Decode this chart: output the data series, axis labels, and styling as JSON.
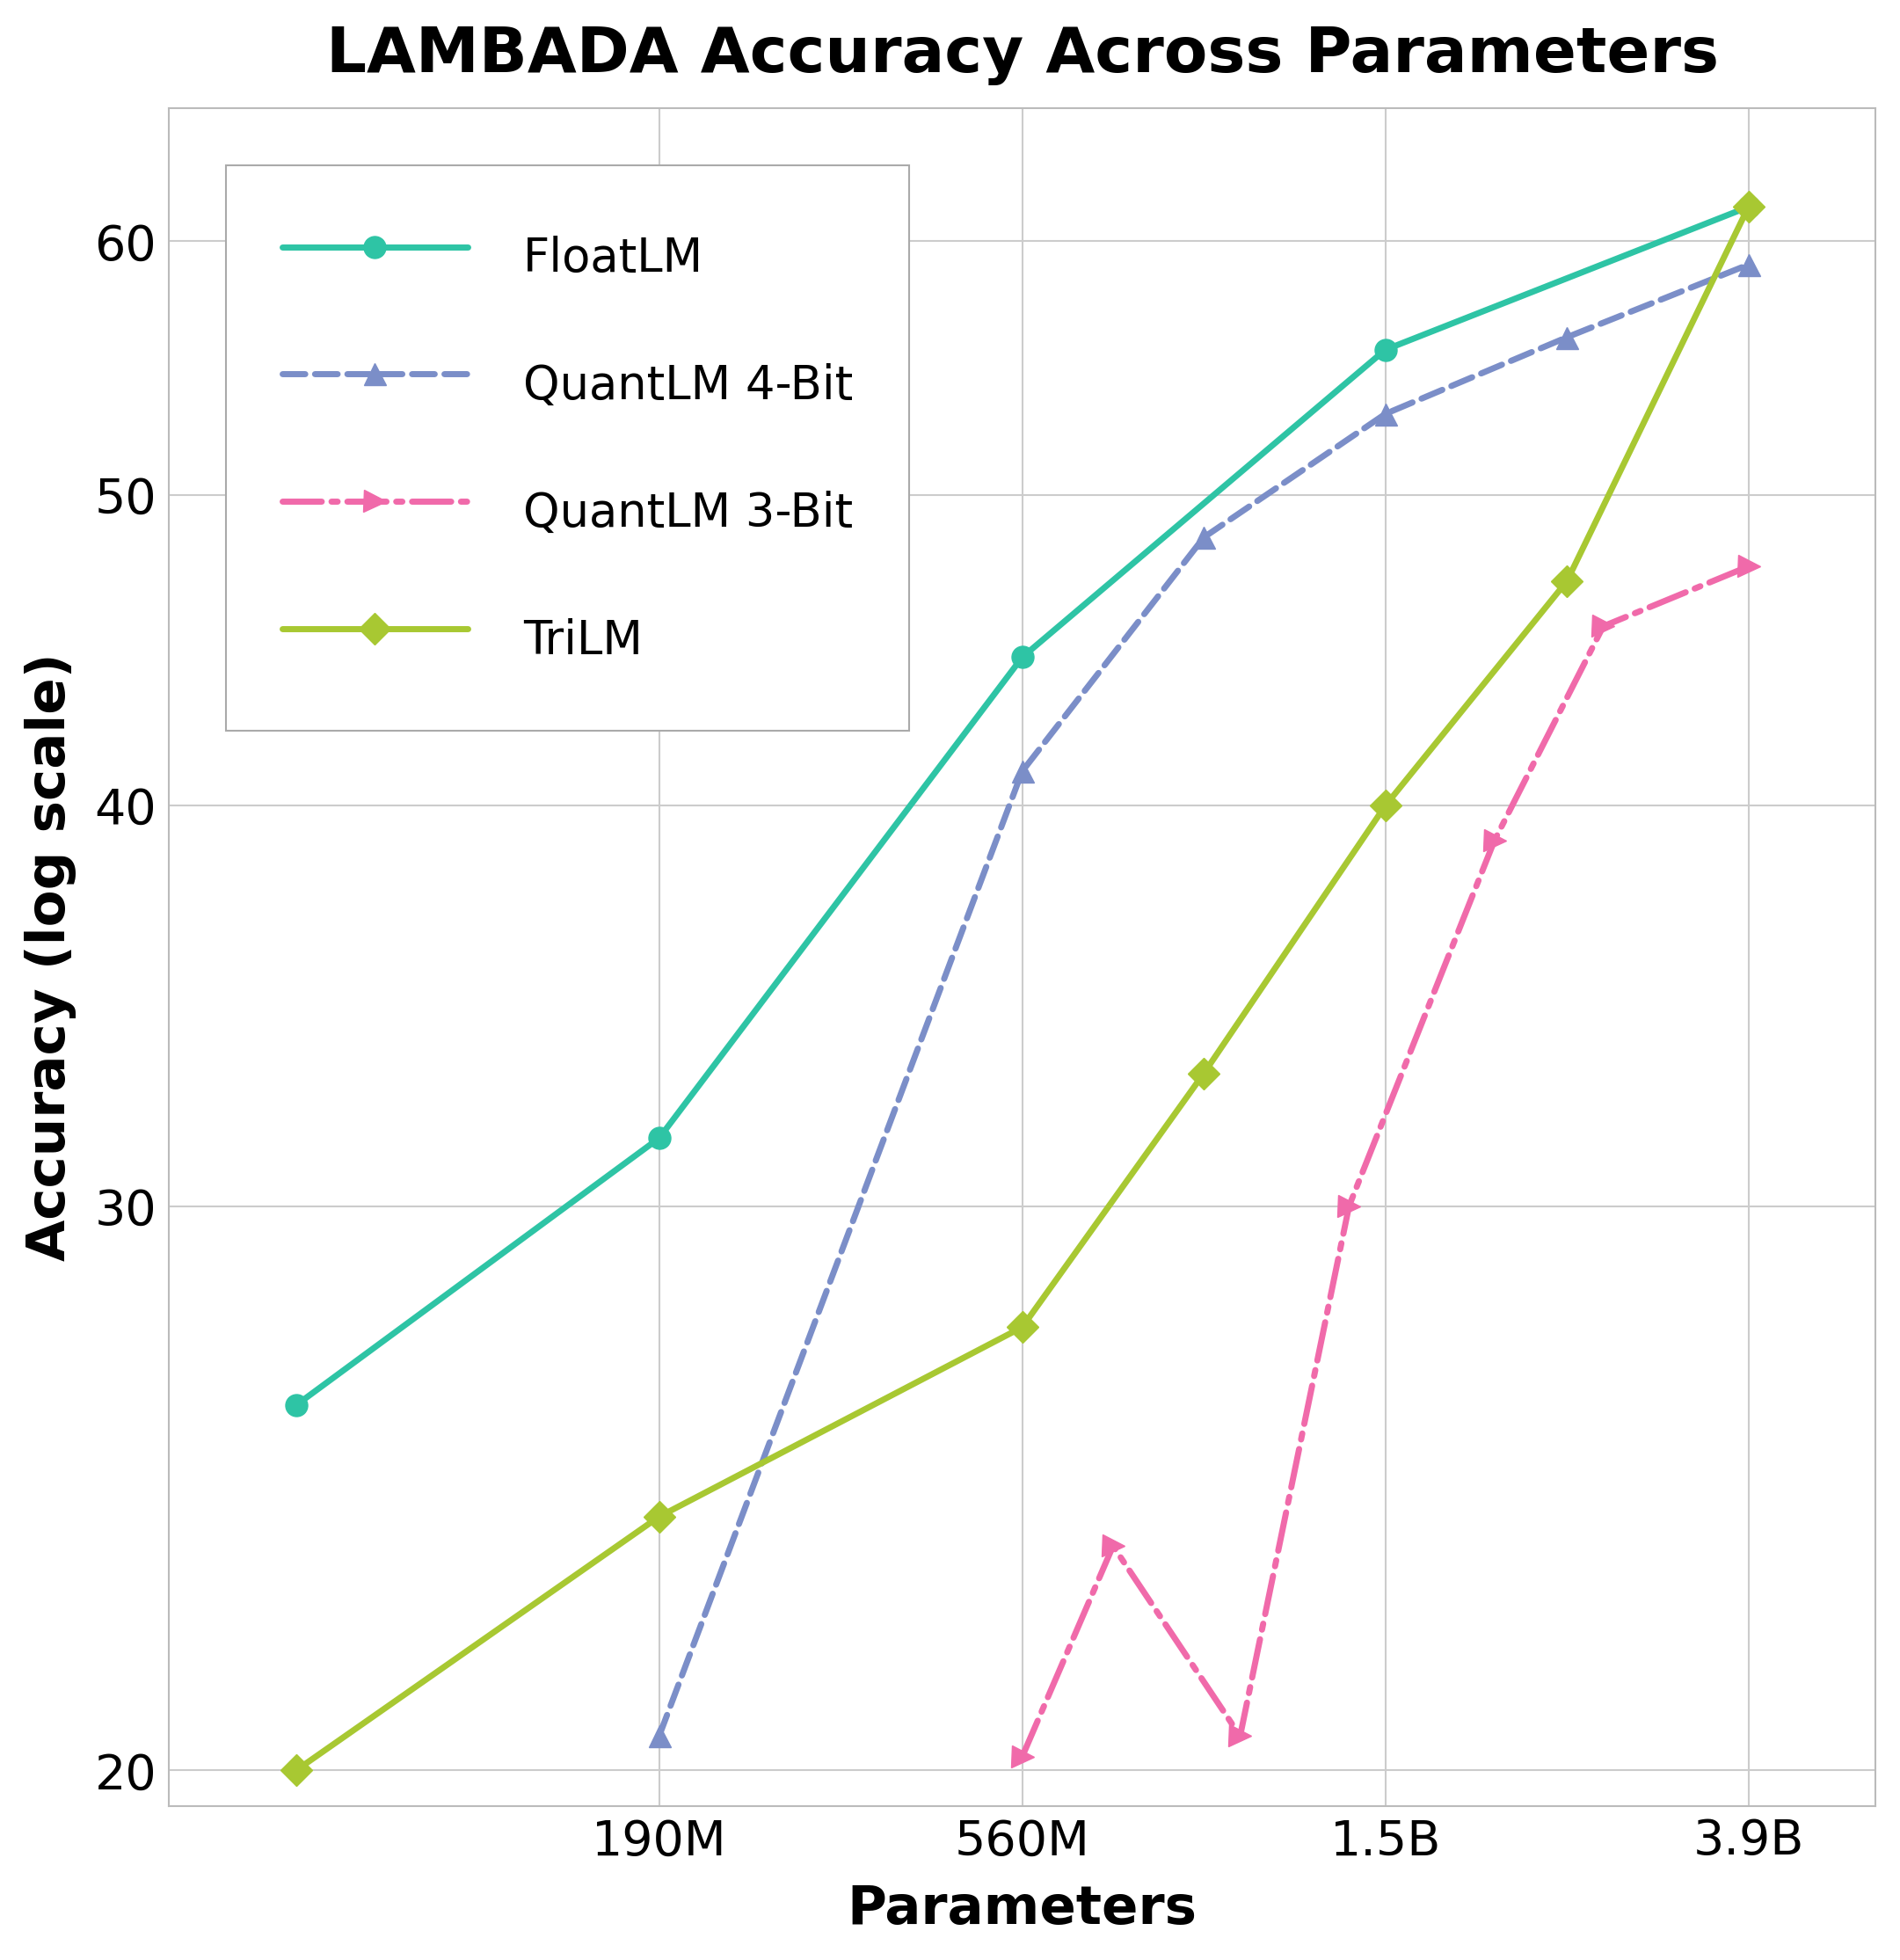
{
  "title": "LAMBADA Accuracy Across Parameters",
  "xlabel": "Parameters",
  "ylabel": "Accuracy (log scale)",
  "series": [
    {
      "label": "FloatLM",
      "color": "#2ec4a5",
      "linestyle": "solid",
      "marker": "o",
      "marker_size": 18,
      "linewidth": 5,
      "x": [
        0,
        1,
        2,
        3,
        4
      ],
      "y": [
        26.0,
        31.5,
        44.5,
        55.5,
        61.5
      ]
    },
    {
      "label": "QuantLM 4-Bit",
      "color": "#7b8ec8",
      "linestyle": "dashed",
      "marker": "^",
      "marker_size": 18,
      "linewidth": 5,
      "x": [
        1,
        2,
        2.5,
        3,
        3.5,
        4
      ],
      "y": [
        20.5,
        41.0,
        48.5,
        53.0,
        56.0,
        59.0
      ]
    },
    {
      "label": "QuantLM 3-Bit",
      "color": "#f06aaa",
      "linestyle": "dashdot",
      "marker": ">",
      "marker_size": 18,
      "linewidth": 5,
      "x": [
        2,
        2.25,
        2.6,
        2.9,
        3.3,
        3.6,
        4
      ],
      "y": [
        20.2,
        23.5,
        20.5,
        30.0,
        39.0,
        45.5,
        47.5
      ]
    },
    {
      "label": "TriLM",
      "color": "#a8c832",
      "linestyle": "solid",
      "marker": "D",
      "marker_size": 18,
      "linewidth": 5,
      "x": [
        0,
        1,
        2,
        2.5,
        3,
        3.5,
        4
      ],
      "y": [
        20.0,
        24.0,
        27.5,
        33.0,
        40.0,
        47.0,
        61.5
      ]
    }
  ],
  "ylim": [
    19.5,
    66
  ],
  "yticks": [
    20,
    30,
    40,
    50,
    60
  ],
  "xlim": [
    -0.35,
    4.35
  ],
  "xticks": [
    1,
    2,
    3,
    4
  ],
  "xticklabels": [
    "190M",
    "560M",
    "1.5B",
    "3.9B"
  ],
  "background_color": "#ffffff",
  "grid_color": "#cccccc",
  "title_fontsize": 52,
  "label_fontsize": 44,
  "tick_fontsize": 40,
  "legend_fontsize": 38
}
